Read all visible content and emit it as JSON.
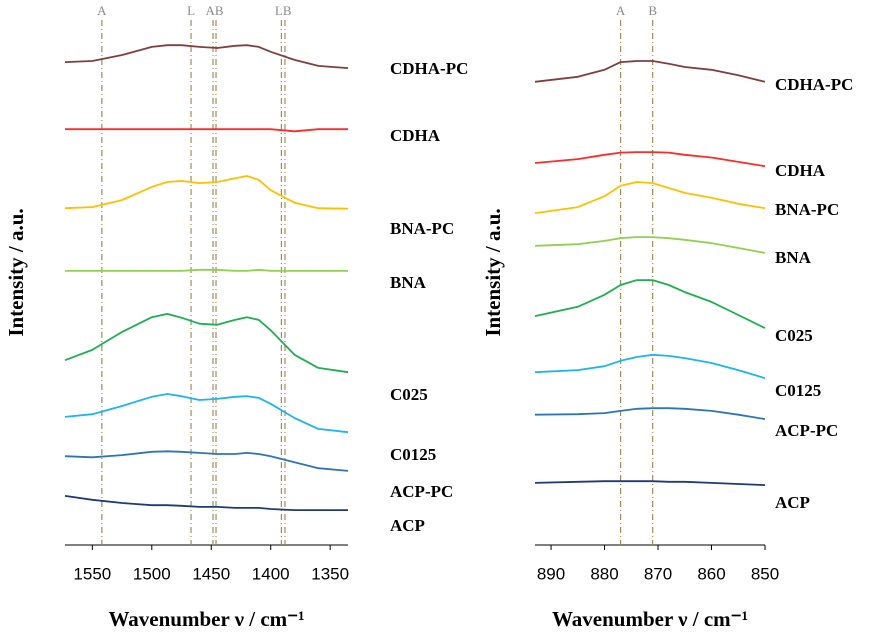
{
  "chart_data": [
    {
      "type": "line",
      "x_label": "Wavenumber ν / cm⁻¹",
      "y_label": "Intensity / a.u.",
      "x": [
        1573,
        1550,
        1525,
        1500,
        1487,
        1475,
        1460,
        1445,
        1430,
        1420,
        1410,
        1400,
        1380,
        1360,
        1335
      ],
      "xlim": [
        1573,
        1335
      ],
      "xticks": [
        1550,
        1500,
        1450,
        1400,
        1350
      ],
      "ylim": [
        0,
        100
      ],
      "reference_lines": [
        {
          "label": "A",
          "values": [
            1542
          ]
        },
        {
          "label": "L",
          "values": [
            1467
          ]
        },
        {
          "label": "AB",
          "values": [
            1448.5,
            1446
          ]
        },
        {
          "label": "LB",
          "values": [
            1391,
            1388
          ]
        }
      ],
      "series": [
        {
          "name": "CDHA-PC",
          "color": "#7f3f3f",
          "values": [
            88.6,
            88.8,
            89.9,
            91.4,
            91.7,
            91.7,
            91.4,
            91.2,
            91.6,
            91.7,
            91.4,
            90.5,
            89.0,
            87.9,
            87.5
          ]
        },
        {
          "name": "CDHA",
          "color": "#ff2a2a",
          "values": [
            76.3,
            76.3,
            76.3,
            76.3,
            76.3,
            76.3,
            76.3,
            76.3,
            76.3,
            76.3,
            76.3,
            76.3,
            75.9,
            76.3,
            76.3
          ]
        },
        {
          "name": "BNA-PC",
          "color": "#ffc000",
          "values": [
            61.8,
            62.0,
            63.3,
            65.7,
            66.6,
            66.8,
            66.4,
            66.6,
            67.3,
            67.7,
            67.0,
            65.1,
            62.8,
            61.8,
            61.7
          ]
        },
        {
          "name": "BNA",
          "color": "#92d050",
          "values": [
            50.3,
            50.3,
            50.3,
            50.3,
            50.3,
            50.3,
            50.5,
            50.5,
            50.3,
            50.3,
            50.5,
            50.3,
            50.3,
            50.3,
            50.3
          ]
        },
        {
          "name": "C025",
          "color": "#1fae52",
          "values": [
            33.9,
            35.8,
            39.1,
            41.8,
            42.4,
            41.7,
            40.6,
            40.4,
            41.3,
            41.8,
            41.3,
            39.4,
            34.9,
            32.5,
            31.7
          ]
        },
        {
          "name": "C0125",
          "color": "#1eb4f0",
          "values": [
            23.5,
            24.0,
            25.5,
            27.2,
            27.7,
            27.3,
            26.6,
            26.8,
            27.2,
            27.3,
            27.0,
            25.9,
            23.3,
            21.3,
            20.7
          ]
        },
        {
          "name": "ACP-PC",
          "color": "#2e75b6",
          "values": [
            16.3,
            16.1,
            16.5,
            17.1,
            17.2,
            17.1,
            16.9,
            16.7,
            16.7,
            16.9,
            16.7,
            16.3,
            15.2,
            14.1,
            13.6
          ]
        },
        {
          "name": "ACP",
          "color": "#1f3a7a",
          "values": [
            9.0,
            8.3,
            7.7,
            7.3,
            7.3,
            7.2,
            7.0,
            7.0,
            6.8,
            6.8,
            6.8,
            6.6,
            6.4,
            6.4,
            6.4
          ]
        }
      ]
    },
    {
      "type": "line",
      "x_label": "Wavenumber ν / cm⁻¹",
      "y_label": "Intensity / a.u.",
      "x": [
        893,
        885,
        880,
        877,
        874,
        871,
        868,
        865,
        860,
        855,
        850
      ],
      "xlim": [
        893,
        850
      ],
      "xticks": [
        890,
        880,
        870,
        860,
        850
      ],
      "ylim": [
        0,
        100
      ],
      "reference_lines": [
        {
          "label": "A",
          "values": [
            877
          ]
        },
        {
          "label": "B",
          "values": [
            871
          ]
        }
      ],
      "series": [
        {
          "name": "CDHA-PC",
          "color": "#7f3f3f",
          "values": [
            85.0,
            85.9,
            87.2,
            88.6,
            88.8,
            88.8,
            88.3,
            87.7,
            87.2,
            86.2,
            85.0
          ]
        },
        {
          "name": "CDHA",
          "color": "#ff2a2a",
          "values": [
            70.1,
            70.8,
            71.6,
            72.0,
            72.1,
            72.1,
            72.0,
            71.6,
            71.1,
            70.3,
            69.5
          ]
        },
        {
          "name": "BNA-PC",
          "color": "#ffc000",
          "values": [
            60.9,
            62.0,
            64.0,
            65.9,
            66.6,
            66.4,
            65.5,
            64.6,
            63.7,
            62.6,
            61.8
          ]
        },
        {
          "name": "BNA",
          "color": "#92d050",
          "values": [
            54.9,
            55.2,
            55.8,
            56.3,
            56.5,
            56.5,
            56.3,
            56.0,
            55.4,
            54.5,
            53.6
          ]
        },
        {
          "name": "C025",
          "color": "#1fae52",
          "values": [
            42.0,
            43.7,
            45.9,
            47.7,
            48.6,
            48.6,
            47.7,
            46.4,
            44.6,
            42.2,
            39.8
          ]
        },
        {
          "name": "C0125",
          "color": "#1eb4f0",
          "values": [
            31.7,
            32.1,
            32.8,
            33.8,
            34.5,
            34.9,
            34.7,
            34.3,
            33.4,
            32.1,
            30.6
          ]
        },
        {
          "name": "ACP-PC",
          "color": "#2e75b6",
          "values": [
            23.9,
            24.0,
            24.2,
            24.6,
            25.0,
            25.1,
            25.1,
            25.0,
            24.6,
            23.9,
            23.1
          ]
        },
        {
          "name": "ACP",
          "color": "#1f3a7a",
          "values": [
            11.4,
            11.6,
            11.7,
            11.7,
            11.7,
            11.7,
            11.6,
            11.6,
            11.4,
            11.2,
            11.0
          ]
        }
      ]
    }
  ]
}
